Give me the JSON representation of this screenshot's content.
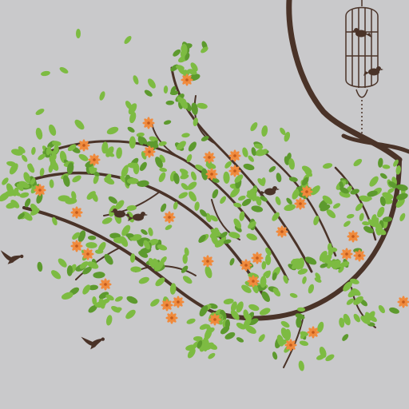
{
  "image": {
    "subject": "wall-decal",
    "colors": {
      "wall": "#c9c9cb",
      "branch": "#4a3328",
      "leaf": "#7dbb42",
      "leaf_dark": "#5d9a2e",
      "flower": "#f08a3c",
      "flower_center": "#c25a1c",
      "bird": "#4a3328"
    }
  }
}
